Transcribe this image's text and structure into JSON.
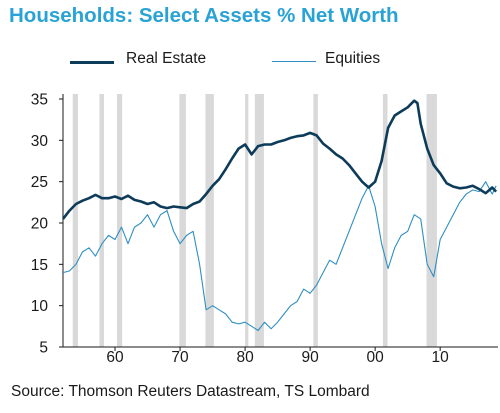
{
  "title": "Households: Select Assets % Net Worth",
  "source": "Source: Thomson Reuters Datastream, TS Lombard",
  "chart_data": {
    "type": "line",
    "title": "Households: Select Assets % Net Worth",
    "xlabel": "",
    "ylabel": "",
    "xlim": [
      1952,
      2019
    ],
    "ylim": [
      5,
      35
    ],
    "x_ticks": [
      1960,
      1970,
      1980,
      1990,
      2000,
      2010
    ],
    "x_tick_labels": [
      "60",
      "70",
      "80",
      "90",
      "00",
      "10"
    ],
    "y_ticks": [
      5,
      10,
      15,
      20,
      25,
      30,
      35
    ],
    "y_tick_labels": [
      "5",
      "10",
      "15",
      "20",
      "25",
      "30",
      "35"
    ],
    "grid": false,
    "legend_position": "top",
    "recession_bands": [
      [
        1953.5,
        1954.3
      ],
      [
        1957.6,
        1958.3
      ],
      [
        1960.3,
        1961.1
      ],
      [
        1969.9,
        1970.9
      ],
      [
        1973.9,
        1975.2
      ],
      [
        1980.0,
        1980.5
      ],
      [
        1981.5,
        1982.9
      ],
      [
        1990.5,
        1991.2
      ],
      [
        2001.2,
        2001.9
      ],
      [
        2007.9,
        2009.5
      ]
    ],
    "series": [
      {
        "name": "Real Estate",
        "color": "#0d3b5a",
        "style": "thick",
        "x": [
          1952,
          1953,
          1954,
          1955,
          1956,
          1957,
          1958,
          1959,
          1960,
          1961,
          1962,
          1963,
          1964,
          1965,
          1966,
          1967,
          1968,
          1969,
          1970,
          1971,
          1972,
          1973,
          1974,
          1975,
          1976,
          1977,
          1978,
          1979,
          1980,
          1981,
          1982,
          1983,
          1984,
          1985,
          1986,
          1987,
          1988,
          1989,
          1990,
          1991,
          1992,
          1993,
          1994,
          1995,
          1996,
          1997,
          1998,
          1999,
          2000,
          2001,
          2002,
          2003,
          2004,
          2005,
          2006,
          2006.5,
          2007,
          2008,
          2009,
          2010,
          2011,
          2012,
          2013,
          2014,
          2015,
          2016,
          2017,
          2018,
          2018.6
        ],
        "y": [
          20.5,
          21.5,
          22.3,
          22.7,
          23.0,
          23.4,
          23.0,
          23.0,
          23.2,
          22.9,
          23.3,
          22.8,
          22.6,
          22.3,
          22.5,
          22.0,
          21.8,
          22.0,
          21.9,
          21.8,
          22.3,
          22.6,
          23.5,
          24.5,
          25.3,
          26.5,
          27.8,
          29.0,
          29.5,
          28.3,
          29.3,
          29.5,
          29.5,
          29.8,
          30.0,
          30.3,
          30.5,
          30.6,
          30.9,
          30.6,
          29.6,
          29.0,
          28.3,
          27.8,
          27.0,
          26.0,
          25.0,
          24.3,
          25.0,
          27.5,
          31.5,
          33.0,
          33.5,
          34.0,
          34.8,
          34.5,
          32.0,
          29.0,
          27.0,
          26.0,
          24.8,
          24.4,
          24.2,
          24.3,
          24.5,
          24.1,
          23.6,
          24.3,
          23.8
        ]
      },
      {
        "name": "Equities",
        "color": "#2e8fc2",
        "style": "thin",
        "x": [
          1952,
          1953,
          1954,
          1955,
          1956,
          1957,
          1958,
          1959,
          1960,
          1961,
          1962,
          1963,
          1964,
          1965,
          1966,
          1967,
          1968,
          1969,
          1970,
          1971,
          1972,
          1973,
          1974,
          1975,
          1976,
          1977,
          1978,
          1979,
          1980,
          1981,
          1982,
          1983,
          1984,
          1985,
          1986,
          1987,
          1988,
          1989,
          1990,
          1991,
          1992,
          1993,
          1994,
          1995,
          1996,
          1997,
          1998,
          1999,
          2000,
          2001,
          2002,
          2003,
          2004,
          2005,
          2006,
          2007,
          2008,
          2009,
          2010,
          2011,
          2012,
          2013,
          2014,
          2015,
          2016,
          2017,
          2018,
          2018.6
        ],
        "y": [
          14.0,
          14.2,
          15.0,
          16.5,
          17.0,
          16.0,
          17.5,
          18.5,
          18.0,
          19.5,
          17.5,
          19.5,
          20.0,
          21.0,
          19.5,
          21.0,
          21.5,
          19.0,
          17.5,
          18.5,
          19.0,
          15.0,
          9.5,
          10.0,
          9.5,
          9.0,
          8.0,
          7.8,
          8.0,
          7.5,
          7.0,
          8.0,
          7.2,
          8.0,
          9.0,
          10.0,
          10.5,
          12.0,
          11.5,
          12.5,
          14.0,
          15.5,
          15.0,
          17.0,
          19.0,
          21.0,
          23.0,
          24.5,
          22.0,
          17.5,
          14.5,
          17.0,
          18.5,
          19.0,
          21.0,
          20.5,
          15.0,
          13.5,
          18.0,
          19.5,
          21.0,
          22.5,
          23.5,
          24.0,
          23.8,
          25.0,
          23.5,
          24.5
        ]
      }
    ]
  }
}
